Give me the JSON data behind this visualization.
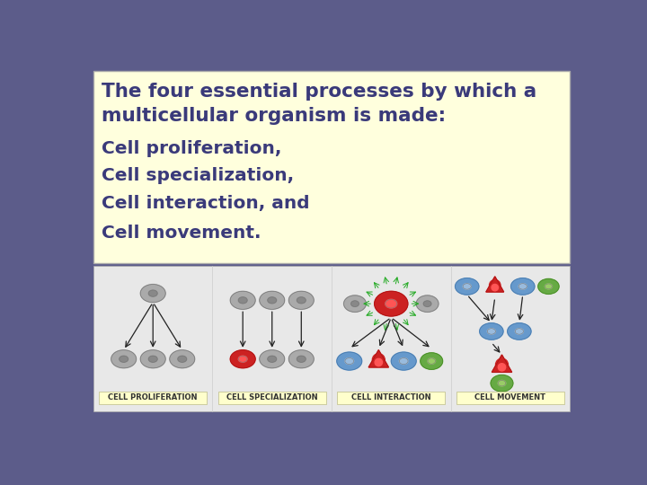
{
  "background_color": "#5C5C8A",
  "top_box_color": "#FFFFDD",
  "top_box_border_color": "#AAAAAA",
  "bottom_box_color": "#E8E8E8",
  "title_line1": "The four essential processes by which a",
  "title_line2": "multicellular organism is made:",
  "items": [
    "Cell proliferation,",
    "Cell specialization,",
    "Cell interaction, and",
    "Cell movement."
  ],
  "text_color": "#3A3A7A",
  "title_fontsize": 15.5,
  "item_fontsize": 14.5,
  "labels": [
    "CELL PROLIFERATION",
    "CELL SPECIALIZATION",
    "CELL INTERACTION",
    "CELL MOVEMENT"
  ],
  "label_box_color": "#FFFFCC",
  "label_fontsize": 6.0,
  "label_text_color": "#333333",
  "cell_gray": "#AAAAAA",
  "cell_gray_inner": "#888888",
  "cell_gray_outline": "#888888",
  "cell_red": "#CC2222",
  "cell_red_inner": "#FF5555",
  "cell_blue": "#6699CC",
  "cell_blue_inner": "#99BBDD",
  "cell_green": "#66AA44",
  "cell_green_inner": "#99CC66"
}
